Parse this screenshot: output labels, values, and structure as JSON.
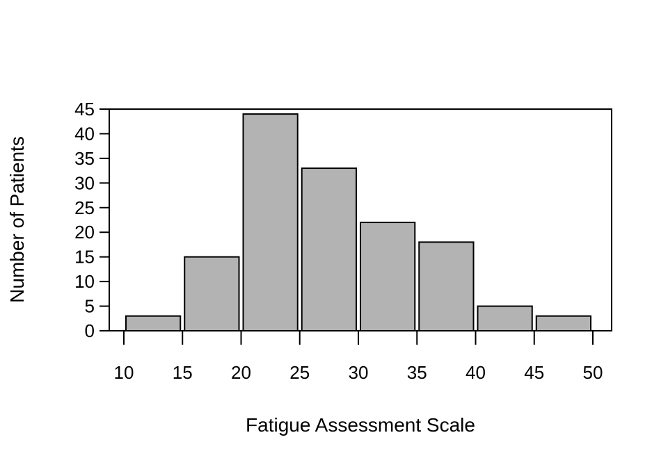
{
  "chart_data": {
    "type": "bar",
    "xlabel": "Fatigue Assessment Scale",
    "ylabel": "Number of Patients",
    "bins": [
      [
        10,
        15
      ],
      [
        15,
        20
      ],
      [
        20,
        25
      ],
      [
        25,
        30
      ],
      [
        30,
        35
      ],
      [
        35,
        40
      ],
      [
        40,
        45
      ],
      [
        45,
        50
      ]
    ],
    "values": [
      3,
      15,
      44,
      33,
      22,
      18,
      5,
      3
    ],
    "xlim": [
      10,
      50
    ],
    "ylim": [
      0,
      45
    ],
    "xticks": [
      10,
      15,
      20,
      25,
      30,
      35,
      40,
      45,
      50
    ],
    "yticks": [
      0,
      5,
      10,
      15,
      20,
      25,
      30,
      35,
      40,
      45
    ],
    "bar_color": "#b3b3b3",
    "grid": false,
    "legend": "none"
  }
}
